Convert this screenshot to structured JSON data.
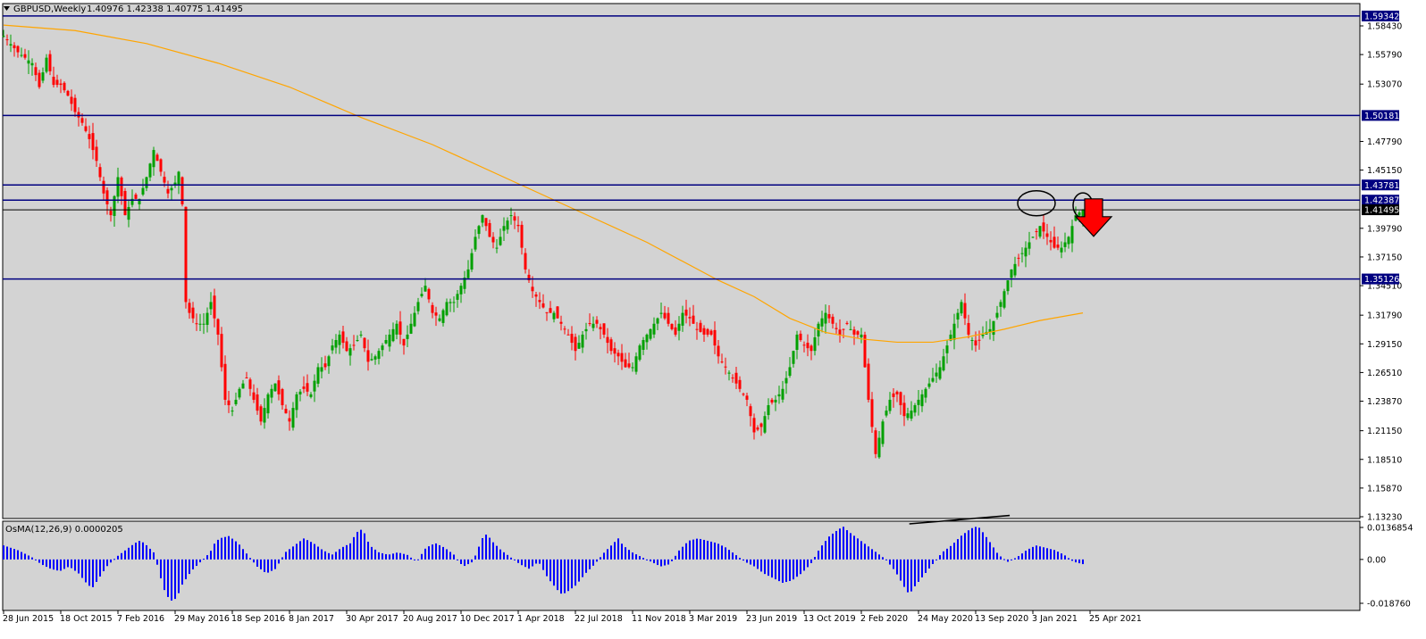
{
  "chart_data": {
    "type": "candlestick",
    "header": {
      "symbol": "GBPUSD,Weekly",
      "ohlc": "1.40976 1.42338 1.40775 1.41495"
    },
    "y_ticks": [
      "1.58430",
      "1.55790",
      "1.53070",
      "1.47790",
      "1.45150",
      "1.39790",
      "1.37150",
      "1.34510",
      "1.31790",
      "1.29150",
      "1.26510",
      "1.23870",
      "1.21150",
      "1.18510",
      "1.15870",
      "1.13230"
    ],
    "y_tick_values": [
      1.5843,
      1.5579,
      1.5307,
      1.4779,
      1.4515,
      1.3979,
      1.3715,
      1.3451,
      1.3179,
      1.2915,
      1.2651,
      1.2387,
      1.2115,
      1.1851,
      1.1587,
      1.1323
    ],
    "horizontal_levels": [
      {
        "label": "1.59342",
        "value": 1.59342,
        "kind": "level"
      },
      {
        "label": "1.50181",
        "value": 1.50181,
        "kind": "level"
      },
      {
        "label": "1.43781",
        "value": 1.43781,
        "kind": "level"
      },
      {
        "label": "1.42387",
        "value": 1.42387,
        "kind": "level"
      },
      {
        "label": "1.41495",
        "value": 1.41495,
        "kind": "bid"
      },
      {
        "label": "1.35126",
        "value": 1.35126,
        "kind": "level"
      }
    ],
    "x_labels": [
      "28 Jun 2015",
      "18 Oct 2015",
      "7 Feb 2016",
      "29 May 2016",
      "18 Sep 2016",
      "8 Jan 2017",
      "30 Apr 2017",
      "20 Aug 2017",
      "10 Dec 2017",
      "1 Apr 2018",
      "22 Jul 2018",
      "11 Nov 2018",
      "3 Mar 2019",
      "23 Jun 2019",
      "13 Oct 2019",
      "2 Feb 2020",
      "24 May 2020",
      "13 Sep 2020",
      "3 Jan 2021",
      "25 Apr 2021"
    ],
    "x_label_index": [
      0,
      16,
      32,
      48,
      64,
      80,
      96,
      112,
      128,
      144,
      160,
      176,
      192,
      208,
      224,
      240,
      256,
      272,
      288,
      304
    ],
    "price_path": [
      [
        0,
        1.575
      ],
      [
        4,
        1.56
      ],
      [
        8,
        1.55
      ],
      [
        10,
        1.528
      ],
      [
        12,
        1.555
      ],
      [
        14,
        1.53
      ],
      [
        16,
        1.53
      ],
      [
        18,
        1.52
      ],
      [
        20,
        1.505
      ],
      [
        22,
        1.495
      ],
      [
        24,
        1.48
      ],
      [
        26,
        1.46
      ],
      [
        28,
        1.43
      ],
      [
        30,
        1.41
      ],
      [
        32,
        1.445
      ],
      [
        34,
        1.41
      ],
      [
        36,
        1.425
      ],
      [
        38,
        1.425
      ],
      [
        40,
        1.445
      ],
      [
        42,
        1.47
      ],
      [
        44,
        1.45
      ],
      [
        46,
        1.43
      ],
      [
        48,
        1.44
      ],
      [
        49,
        1.45
      ],
      [
        50,
        1.42
      ],
      [
        51,
        1.33
      ],
      [
        52,
        1.32
      ],
      [
        54,
        1.31
      ],
      [
        56,
        1.31
      ],
      [
        58,
        1.33
      ],
      [
        60,
        1.3
      ],
      [
        62,
        1.24
      ],
      [
        64,
        1.23
      ],
      [
        66,
        1.25
      ],
      [
        68,
        1.26
      ],
      [
        70,
        1.24
      ],
      [
        72,
        1.22
      ],
      [
        74,
        1.245
      ],
      [
        76,
        1.255
      ],
      [
        78,
        1.235
      ],
      [
        80,
        1.22
      ],
      [
        82,
        1.245
      ],
      [
        84,
        1.25
      ],
      [
        86,
        1.245
      ],
      [
        88,
        1.27
      ],
      [
        90,
        1.27
      ],
      [
        92,
        1.29
      ],
      [
        94,
        1.3
      ],
      [
        96,
        1.285
      ],
      [
        98,
        1.29
      ],
      [
        100,
        1.3
      ],
      [
        102,
        1.275
      ],
      [
        104,
        1.28
      ],
      [
        106,
        1.29
      ],
      [
        108,
        1.3
      ],
      [
        110,
        1.31
      ],
      [
        112,
        1.29
      ],
      [
        114,
        1.31
      ],
      [
        116,
        1.33
      ],
      [
        118,
        1.345
      ],
      [
        120,
        1.32
      ],
      [
        122,
        1.315
      ],
      [
        124,
        1.33
      ],
      [
        126,
        1.33
      ],
      [
        128,
        1.345
      ],
      [
        130,
        1.36
      ],
      [
        132,
        1.39
      ],
      [
        134,
        1.41
      ],
      [
        136,
        1.39
      ],
      [
        138,
        1.38
      ],
      [
        140,
        1.4
      ],
      [
        142,
        1.41
      ],
      [
        144,
        1.4
      ],
      [
        146,
        1.36
      ],
      [
        148,
        1.34
      ],
      [
        150,
        1.33
      ],
      [
        152,
        1.32
      ],
      [
        154,
        1.32
      ],
      [
        156,
        1.31
      ],
      [
        158,
        1.3
      ],
      [
        160,
        1.285
      ],
      [
        162,
        1.3
      ],
      [
        164,
        1.31
      ],
      [
        166,
        1.31
      ],
      [
        168,
        1.3
      ],
      [
        170,
        1.285
      ],
      [
        172,
        1.28
      ],
      [
        174,
        1.27
      ],
      [
        176,
        1.27
      ],
      [
        178,
        1.29
      ],
      [
        180,
        1.3
      ],
      [
        182,
        1.31
      ],
      [
        184,
        1.32
      ],
      [
        186,
        1.31
      ],
      [
        188,
        1.3
      ],
      [
        190,
        1.32
      ],
      [
        192,
        1.315
      ],
      [
        194,
        1.305
      ],
      [
        196,
        1.3
      ],
      [
        198,
        1.3
      ],
      [
        200,
        1.28
      ],
      [
        202,
        1.27
      ],
      [
        204,
        1.26
      ],
      [
        206,
        1.25
      ],
      [
        208,
        1.24
      ],
      [
        210,
        1.21
      ],
      [
        212,
        1.215
      ],
      [
        214,
        1.235
      ],
      [
        216,
        1.24
      ],
      [
        218,
        1.25
      ],
      [
        220,
        1.27
      ],
      [
        222,
        1.3
      ],
      [
        224,
        1.29
      ],
      [
        226,
        1.285
      ],
      [
        228,
        1.31
      ],
      [
        230,
        1.32
      ],
      [
        232,
        1.31
      ],
      [
        234,
        1.3
      ],
      [
        236,
        1.31
      ],
      [
        238,
        1.3
      ],
      [
        240,
        1.3
      ],
      [
        242,
        1.24
      ],
      [
        244,
        1.19
      ],
      [
        246,
        1.22
      ],
      [
        248,
        1.24
      ],
      [
        250,
        1.245
      ],
      [
        252,
        1.225
      ],
      [
        254,
        1.23
      ],
      [
        256,
        1.24
      ],
      [
        258,
        1.25
      ],
      [
        260,
        1.26
      ],
      [
        262,
        1.27
      ],
      [
        264,
        1.29
      ],
      [
        266,
        1.31
      ],
      [
        268,
        1.33
      ],
      [
        270,
        1.3
      ],
      [
        272,
        1.29
      ],
      [
        274,
        1.3
      ],
      [
        276,
        1.305
      ],
      [
        278,
        1.32
      ],
      [
        280,
        1.34
      ],
      [
        282,
        1.36
      ],
      [
        284,
        1.37
      ],
      [
        286,
        1.38
      ],
      [
        288,
        1.39
      ],
      [
        290,
        1.4
      ],
      [
        292,
        1.39
      ],
      [
        294,
        1.38
      ],
      [
        296,
        1.38
      ],
      [
        298,
        1.39
      ],
      [
        300,
        1.41
      ],
      [
        302,
        1.415
      ]
    ],
    "ma_path": [
      [
        0,
        1.585
      ],
      [
        20,
        1.58
      ],
      [
        40,
        1.568
      ],
      [
        60,
        1.55
      ],
      [
        80,
        1.528
      ],
      [
        100,
        1.5
      ],
      [
        120,
        1.475
      ],
      [
        140,
        1.445
      ],
      [
        160,
        1.415
      ],
      [
        180,
        1.385
      ],
      [
        200,
        1.35
      ],
      [
        210,
        1.335
      ],
      [
        220,
        1.315
      ],
      [
        230,
        1.302
      ],
      [
        240,
        1.296
      ],
      [
        250,
        1.293
      ],
      [
        260,
        1.293
      ],
      [
        270,
        1.298
      ],
      [
        280,
        1.305
      ],
      [
        290,
        1.313
      ],
      [
        302,
        1.32
      ]
    ],
    "candle_count": 303,
    "indicator": {
      "label": "OsMA(12,26,9) 0.0000205",
      "y_ticks": [
        "0.0136854",
        "0.00",
        "-0.018760"
      ],
      "y_tick_values": [
        0.0136854,
        0.0,
        -0.01876
      ],
      "path": [
        [
          0,
          0.006
        ],
        [
          3,
          0.004
        ],
        [
          6,
          0.001
        ],
        [
          8,
          -0.002
        ],
        [
          10,
          -0.004
        ],
        [
          12,
          -0.005
        ],
        [
          14,
          -0.003
        ],
        [
          16,
          -0.006
        ],
        [
          18,
          -0.011
        ],
        [
          19,
          -0.012
        ],
        [
          20,
          -0.009
        ],
        [
          22,
          -0.003
        ],
        [
          24,
          0.001
        ],
        [
          26,
          0.004
        ],
        [
          28,
          0.007
        ],
        [
          29,
          0.008
        ],
        [
          30,
          0.007
        ],
        [
          32,
          0.003
        ],
        [
          33,
          -0.004
        ],
        [
          34,
          -0.012
        ],
        [
          35,
          -0.016
        ],
        [
          36,
          -0.018
        ],
        [
          37,
          -0.016
        ],
        [
          38,
          -0.011
        ],
        [
          40,
          -0.005
        ],
        [
          42,
          -0.001
        ],
        [
          44,
          0.003
        ],
        [
          45,
          0.007
        ],
        [
          46,
          0.009
        ],
        [
          48,
          0.01
        ],
        [
          50,
          0.007
        ],
        [
          52,
          0.002
        ],
        [
          54,
          -0.003
        ],
        [
          56,
          -0.006
        ],
        [
          58,
          -0.004
        ],
        [
          60,
          0.003
        ],
        [
          62,
          0.006
        ],
        [
          64,
          0.009
        ],
        [
          66,
          0.007
        ],
        [
          68,
          0.004
        ],
        [
          70,
          0.002
        ],
        [
          72,
          0.005
        ],
        [
          74,
          0.007
        ],
        [
          75,
          0.011
        ],
        [
          76,
          0.013
        ],
        [
          77,
          0.011
        ],
        [
          78,
          0.006
        ],
        [
          80,
          0.003
        ],
        [
          82,
          0.002
        ],
        [
          84,
          0.003
        ],
        [
          86,
          0.002
        ],
        [
          88,
          -0.001
        ],
        [
          90,
          0.005
        ],
        [
          92,
          0.007
        ],
        [
          94,
          0.005
        ],
        [
          96,
          0.002
        ],
        [
          97,
          -0.001
        ],
        [
          98,
          -0.003
        ],
        [
          100,
          -0.001
        ],
        [
          101,
          0.004
        ],
        [
          102,
          0.009
        ],
        [
          103,
          0.011
        ],
        [
          104,
          0.008
        ],
        [
          106,
          0.004
        ],
        [
          108,
          0.001
        ],
        [
          110,
          -0.002
        ],
        [
          112,
          -0.004
        ],
        [
          114,
          -0.001
        ],
        [
          116,
          -0.008
        ],
        [
          118,
          -0.013
        ],
        [
          119,
          -0.015
        ],
        [
          120,
          -0.014
        ],
        [
          122,
          -0.011
        ],
        [
          124,
          -0.006
        ],
        [
          126,
          -0.002
        ],
        [
          128,
          0.003
        ],
        [
          130,
          0.007
        ],
        [
          131,
          0.009
        ],
        [
          132,
          0.006
        ],
        [
          134,
          0.003
        ],
        [
          136,
          0.001
        ],
        [
          138,
          -0.001
        ],
        [
          140,
          -0.003
        ],
        [
          142,
          -0.002
        ],
        [
          144,
          0.004
        ],
        [
          146,
          0.008
        ],
        [
          148,
          0.009
        ],
        [
          150,
          0.008
        ],
        [
          152,
          0.007
        ],
        [
          154,
          0.005
        ],
        [
          156,
          0.002
        ],
        [
          158,
          -0.001
        ],
        [
          160,
          -0.003
        ],
        [
          162,
          -0.006
        ],
        [
          164,
          -0.008
        ],
        [
          166,
          -0.01
        ],
        [
          168,
          -0.009
        ],
        [
          170,
          -0.006
        ],
        [
          172,
          -0.002
        ],
        [
          174,
          0.005
        ],
        [
          176,
          0.01
        ],
        [
          178,
          0.013
        ],
        [
          179,
          0.014
        ],
        [
          180,
          0.012
        ],
        [
          182,
          0.009
        ],
        [
          184,
          0.006
        ],
        [
          186,
          0.003
        ],
        [
          188,
          0.0
        ],
        [
          190,
          -0.005
        ],
        [
          192,
          -0.012
        ],
        [
          193,
          -0.015
        ],
        [
          194,
          -0.012
        ],
        [
          196,
          -0.007
        ],
        [
          198,
          -0.002
        ],
        [
          200,
          0.003
        ],
        [
          202,
          0.006
        ],
        [
          204,
          0.01
        ],
        [
          206,
          0.013
        ],
        [
          207,
          0.014
        ],
        [
          208,
          0.0135
        ],
        [
          210,
          0.008
        ],
        [
          212,
          0.002
        ],
        [
          214,
          -0.001
        ],
        [
          216,
          0.001
        ],
        [
          218,
          0.004
        ],
        [
          220,
          0.006
        ],
        [
          222,
          0.005
        ],
        [
          224,
          0.004
        ],
        [
          226,
          0.002
        ],
        [
          228,
          -0.001
        ],
        [
          230,
          -0.002
        ]
      ],
      "trendline": [
        [
          0.668,
          0.002
        ],
        [
          0.742,
          0.015
        ]
      ]
    },
    "annotations": [
      {
        "type": "ellipse",
        "at_index": 289,
        "at_value": 1.421
      },
      {
        "type": "ellipse",
        "at_index": 302,
        "at_value": 1.419
      },
      {
        "type": "arrow-down",
        "color": "#ff0000",
        "at_index": 305,
        "at_value": 1.402
      },
      {
        "type": "trendline-price-bottom",
        "at_index": [
          256,
          296
        ]
      }
    ],
    "colors": {
      "bull": "#00a000",
      "bear": "#ff0000",
      "ma": "#ffa500",
      "level": "#000080",
      "bid_line": "#000000",
      "histogram": "#0000ff",
      "plot_bg": "#d3d3d3",
      "outer_bg": "#ffffff"
    }
  }
}
